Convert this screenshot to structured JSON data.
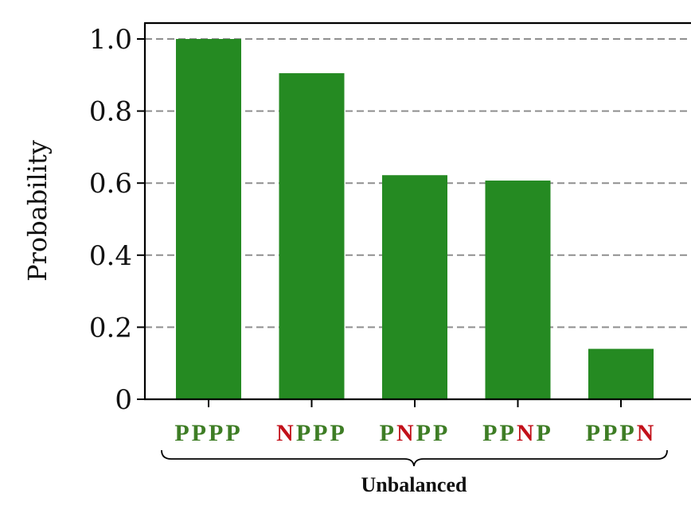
{
  "chart_data": {
    "type": "bar",
    "categories": [
      "PPPP",
      "NPPP",
      "PNPP",
      "PPNP",
      "PPPN"
    ],
    "values": [
      1.0,
      0.905,
      0.622,
      0.607,
      0.14
    ],
    "ylabel": "Probability",
    "xlabel": "",
    "ylim": [
      0,
      1.05
    ],
    "yticks": [
      0,
      0.2,
      0.4,
      0.6,
      0.8,
      1.0
    ],
    "ytick_labels": [
      "0",
      "0.2",
      "0.4",
      "0.6",
      "0.8",
      "1.0"
    ],
    "grid": "horizontal dashed",
    "group_label": "Unbalanced",
    "colors": {
      "bar": "#258a22",
      "label_p": "#3e7d25",
      "label_n": "#c2101a",
      "grid": "#8f8f8f"
    }
  }
}
